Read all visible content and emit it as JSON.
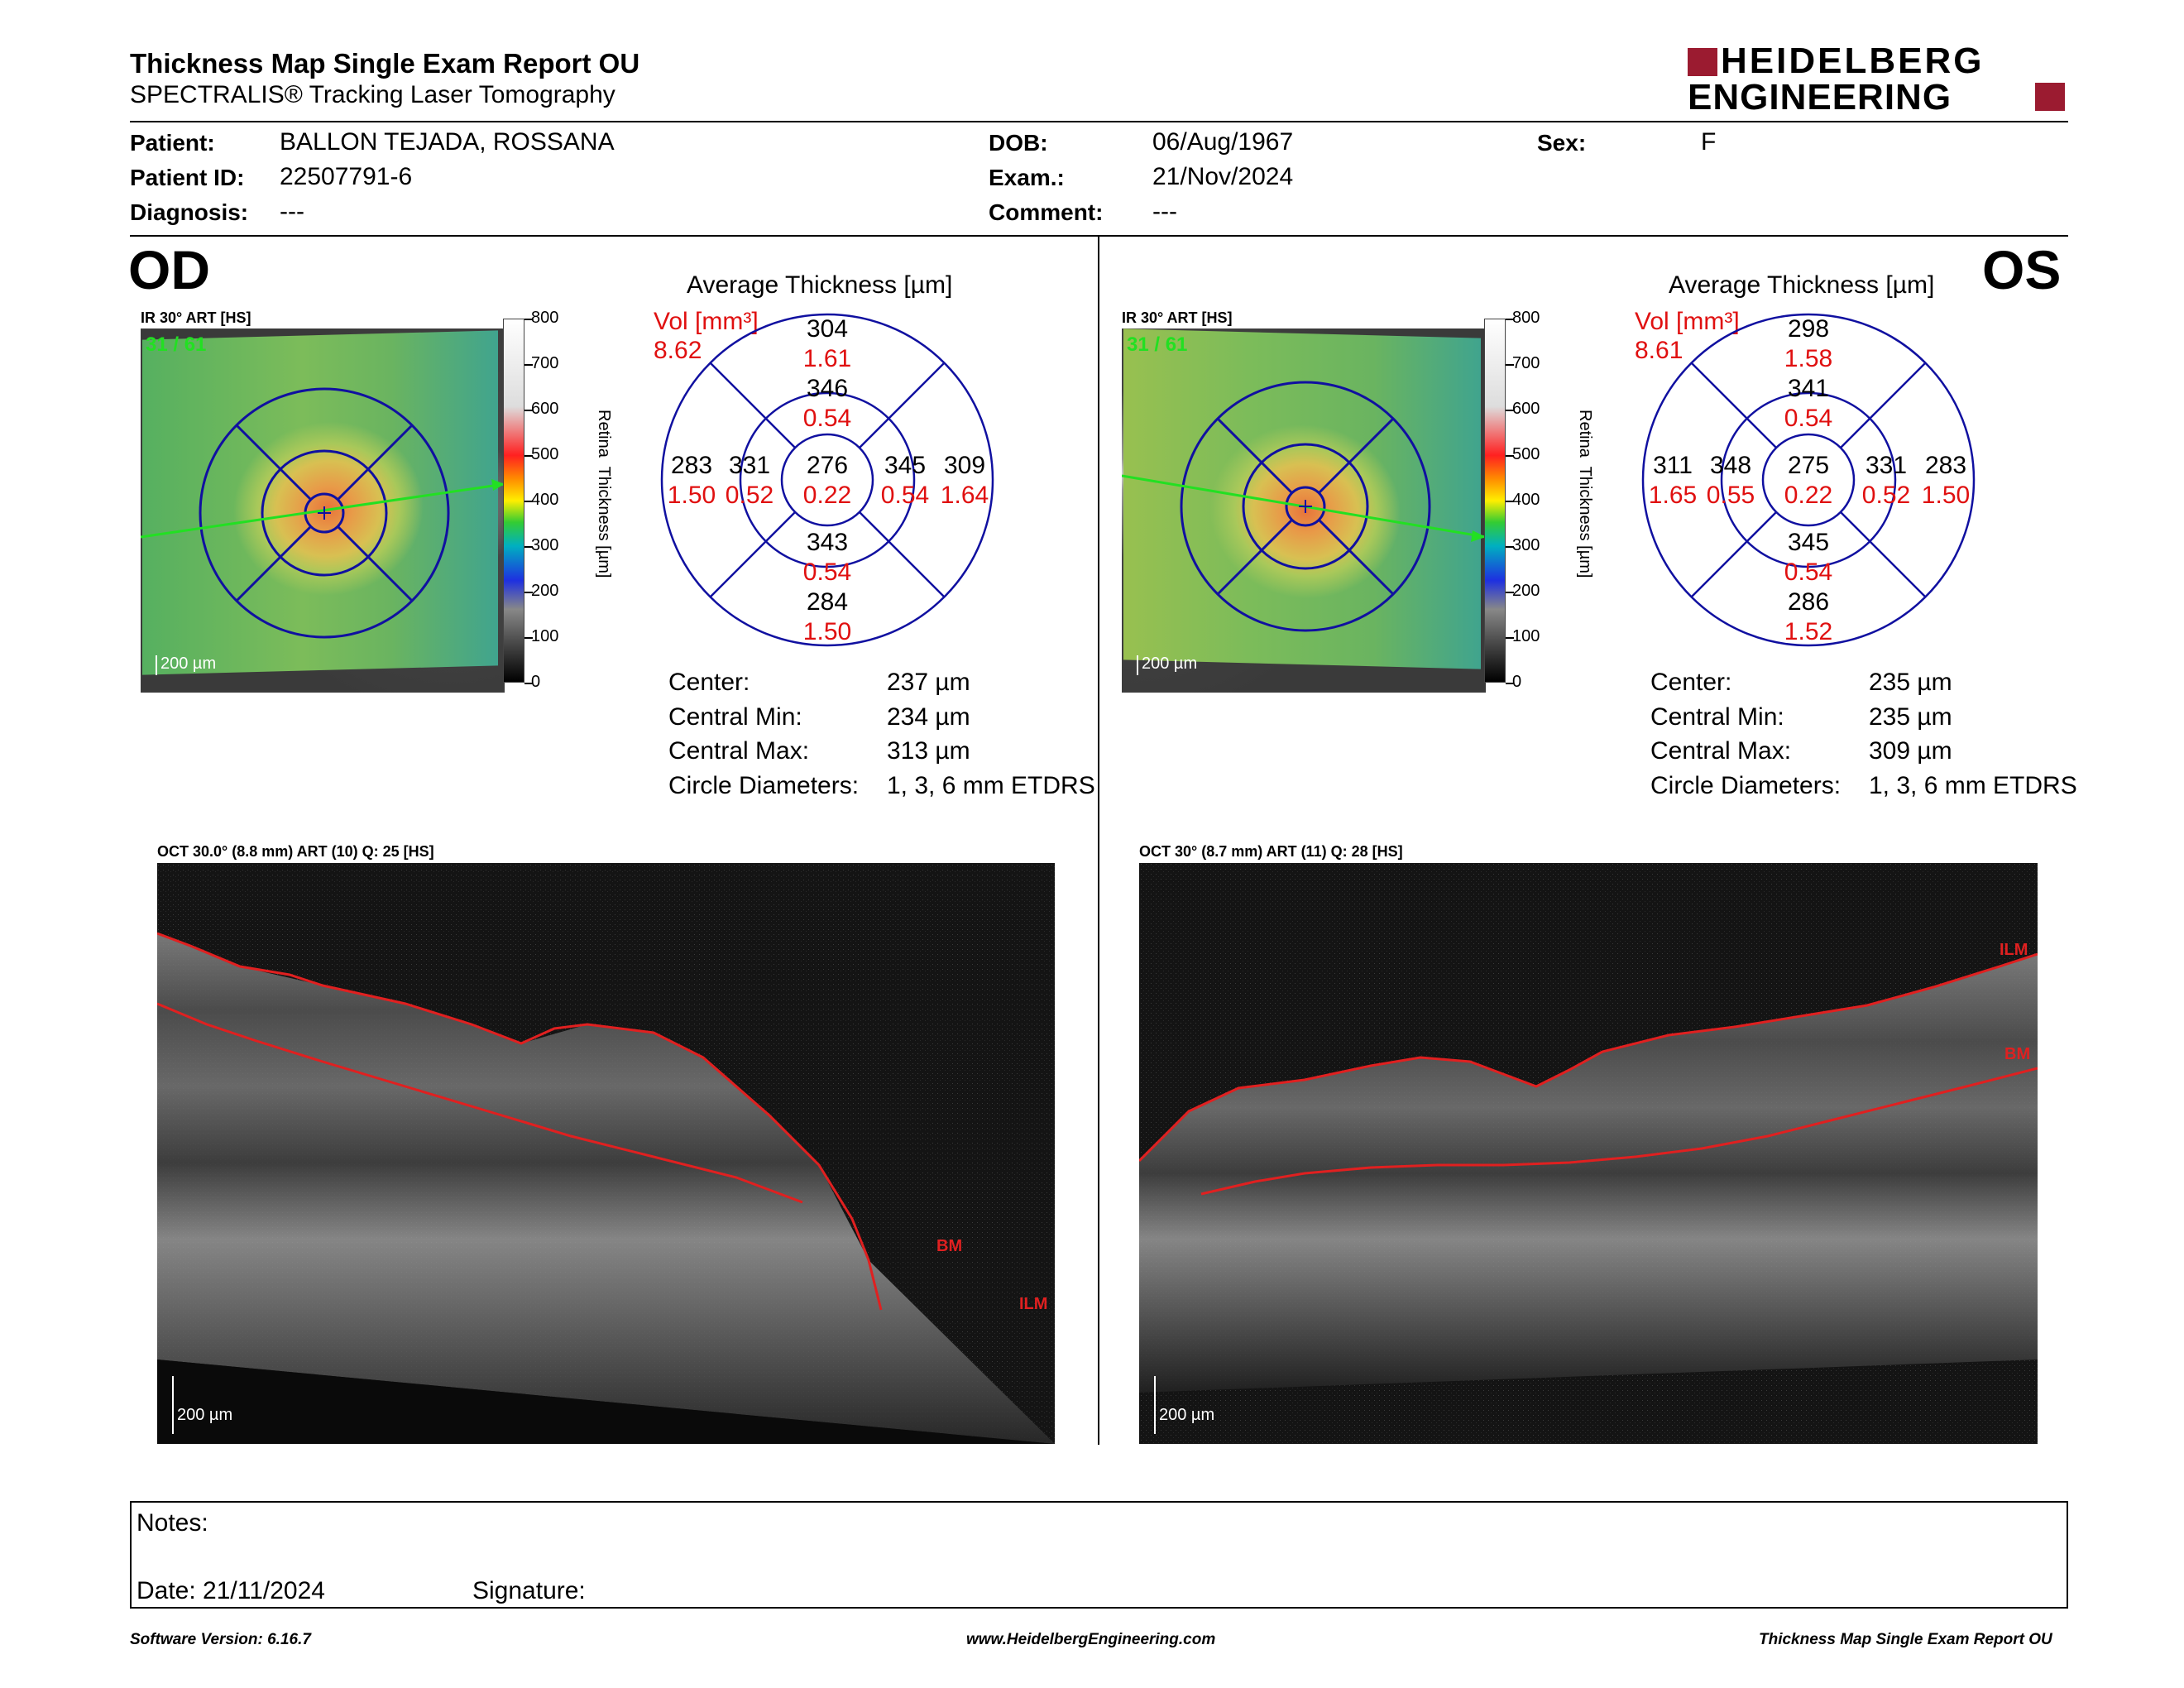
{
  "header": {
    "title": "Thickness Map Single Exam Report OU",
    "subtitle": "SPECTRALIS® Tracking Laser Tomography",
    "brand_line1": "HEIDELBERG",
    "brand_line2": "ENGINEERING"
  },
  "patient": {
    "patient_label": "Patient:",
    "patient_value": "BALLON TEJADA, ROSSANA",
    "id_label": "Patient ID:",
    "id_value": "22507791-6",
    "diagnosis_label": "Diagnosis:",
    "diagnosis_value": "---",
    "dob_label": "DOB:",
    "dob_value": "06/Aug/1967",
    "exam_label": "Exam.:",
    "exam_value": "21/Nov/2024",
    "comment_label": "Comment:",
    "comment_value": "---",
    "sex_label": "Sex:",
    "sex_value": "F"
  },
  "colorscale": {
    "ticks": [
      "800",
      "700",
      "600",
      "500",
      "400",
      "300",
      "200",
      "100",
      "0"
    ],
    "label": "Retina  Thickness [µm]"
  },
  "od": {
    "eye": "OD",
    "ir_label": "IR 30° ART [HS]",
    "ir_counter": "31 / 61",
    "scale": "200 µm",
    "avg_title": "Average Thickness [µm]",
    "vol_label": "Vol [mm³]",
    "vol_value": "8.62",
    "sectors": {
      "center": [
        "276",
        "0.22"
      ],
      "inner_sup": [
        "346",
        "0.54"
      ],
      "inner_inf": [
        "343",
        "0.54"
      ],
      "inner_left": [
        "331",
        "0.52"
      ],
      "inner_right": [
        "345",
        "0.54"
      ],
      "outer_sup": [
        "304",
        "1.61"
      ],
      "outer_inf": [
        "284",
        "1.50"
      ],
      "outer_left": [
        "283",
        "1.50"
      ],
      "outer_right": [
        "309",
        "1.64"
      ]
    },
    "stats": {
      "center_label": "Center:",
      "center_value": "237 µm",
      "min_label": "Central Min:",
      "min_value": "234 µm",
      "max_label": "Central Max:",
      "max_value": "313 µm",
      "circle_label": "Circle Diameters:",
      "circle_value": "1, 3, 6 mm ETDRS"
    },
    "oct_label": "OCT 30.0° (8.8 mm) ART (10) Q: 25 [HS]",
    "oct_scale": "200 µm",
    "bm": "BM",
    "ilm": "ILM"
  },
  "os": {
    "eye": "OS",
    "ir_label": "IR 30° ART [HS]",
    "ir_counter": "31 / 61",
    "scale": "200 µm",
    "avg_title": "Average Thickness [µm]",
    "vol_label": "Vol [mm³]",
    "vol_value": "8.61",
    "sectors": {
      "center": [
        "275",
        "0.22"
      ],
      "inner_sup": [
        "341",
        "0.54"
      ],
      "inner_inf": [
        "345",
        "0.54"
      ],
      "inner_left": [
        "348",
        "0.55"
      ],
      "inner_right": [
        "331",
        "0.52"
      ],
      "outer_sup": [
        "298",
        "1.58"
      ],
      "outer_inf": [
        "286",
        "1.52"
      ],
      "outer_left": [
        "311",
        "1.65"
      ],
      "outer_right": [
        "283",
        "1.50"
      ]
    },
    "stats": {
      "center_label": "Center:",
      "center_value": "235 µm",
      "min_label": "Central Min:",
      "min_value": "235 µm",
      "max_label": "Central Max:",
      "max_value": "309 µm",
      "circle_label": "Circle Diameters:",
      "circle_value": "1, 3, 6 mm ETDRS"
    },
    "oct_label": "OCT 30° (8.7 mm) ART (11) Q: 28 [HS]",
    "oct_scale": "200 µm",
    "bm": "BM",
    "ilm": "ILM"
  },
  "notes": {
    "notes_label": "Notes:",
    "date_label": "Date: 21/11/2024",
    "signature_label": "Signature:"
  },
  "footer": {
    "version": "Software Version: 6.16.7",
    "website": "www.HeidelbergEngineering.com",
    "report": "Thickness Map Single Exam Report OU"
  },
  "colors": {
    "red": "#e01010",
    "circle": "#1010a0",
    "brand": "#9b1b30"
  }
}
